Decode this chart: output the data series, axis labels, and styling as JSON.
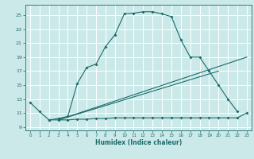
{
  "xlabel": "Humidex (Indice chaleur)",
  "bg_color": "#cce9e9",
  "grid_color": "#ffffff",
  "line_color": "#1a6b6b",
  "xlim": [
    -0.5,
    23.5
  ],
  "ylim": [
    8.5,
    26.5
  ],
  "yticks": [
    9,
    11,
    13,
    15,
    17,
    19,
    21,
    23,
    25
  ],
  "xticks": [
    0,
    1,
    2,
    3,
    4,
    5,
    6,
    7,
    8,
    9,
    10,
    11,
    12,
    13,
    14,
    15,
    16,
    17,
    18,
    19,
    20,
    21,
    22,
    23
  ],
  "curve1_x": [
    0,
    1,
    2,
    3,
    4,
    5,
    6,
    7,
    8,
    9,
    10,
    11,
    12,
    13,
    14,
    15,
    16,
    17,
    18,
    19,
    20,
    21,
    22
  ],
  "curve1_y": [
    12.5,
    11.2,
    10.0,
    10.2,
    10.5,
    15.2,
    17.5,
    18.0,
    20.5,
    22.2,
    25.2,
    25.3,
    25.5,
    25.5,
    25.2,
    24.8,
    21.5,
    19.0,
    19.0,
    17.0,
    15.0,
    13.0,
    11.2
  ],
  "curve2_x": [
    2,
    3,
    4,
    5,
    6,
    7,
    8,
    9,
    10,
    11,
    12,
    13,
    14,
    15,
    16,
    17,
    18,
    19,
    20,
    21,
    22,
    23
  ],
  "curve2_y": [
    10.0,
    10.0,
    10.0,
    10.1,
    10.1,
    10.2,
    10.2,
    10.3,
    10.3,
    10.3,
    10.3,
    10.3,
    10.3,
    10.3,
    10.3,
    10.3,
    10.3,
    10.3,
    10.3,
    10.3,
    10.3,
    11.0
  ],
  "curve3_x": [
    3,
    23
  ],
  "curve3_y": [
    10.0,
    19.0
  ],
  "curve4_x": [
    3,
    20
  ],
  "curve4_y": [
    10.0,
    17.0
  ]
}
